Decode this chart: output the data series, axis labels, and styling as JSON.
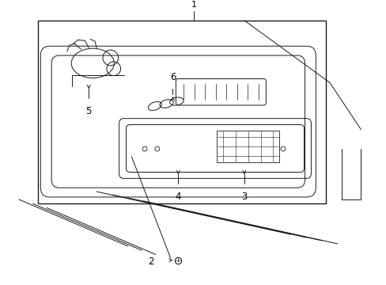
{
  "bg_color": "#ffffff",
  "line_color": "#1a1a1a",
  "label_color": "#000000",
  "fig_w": 4.89,
  "fig_h": 3.6,
  "dpi": 100
}
